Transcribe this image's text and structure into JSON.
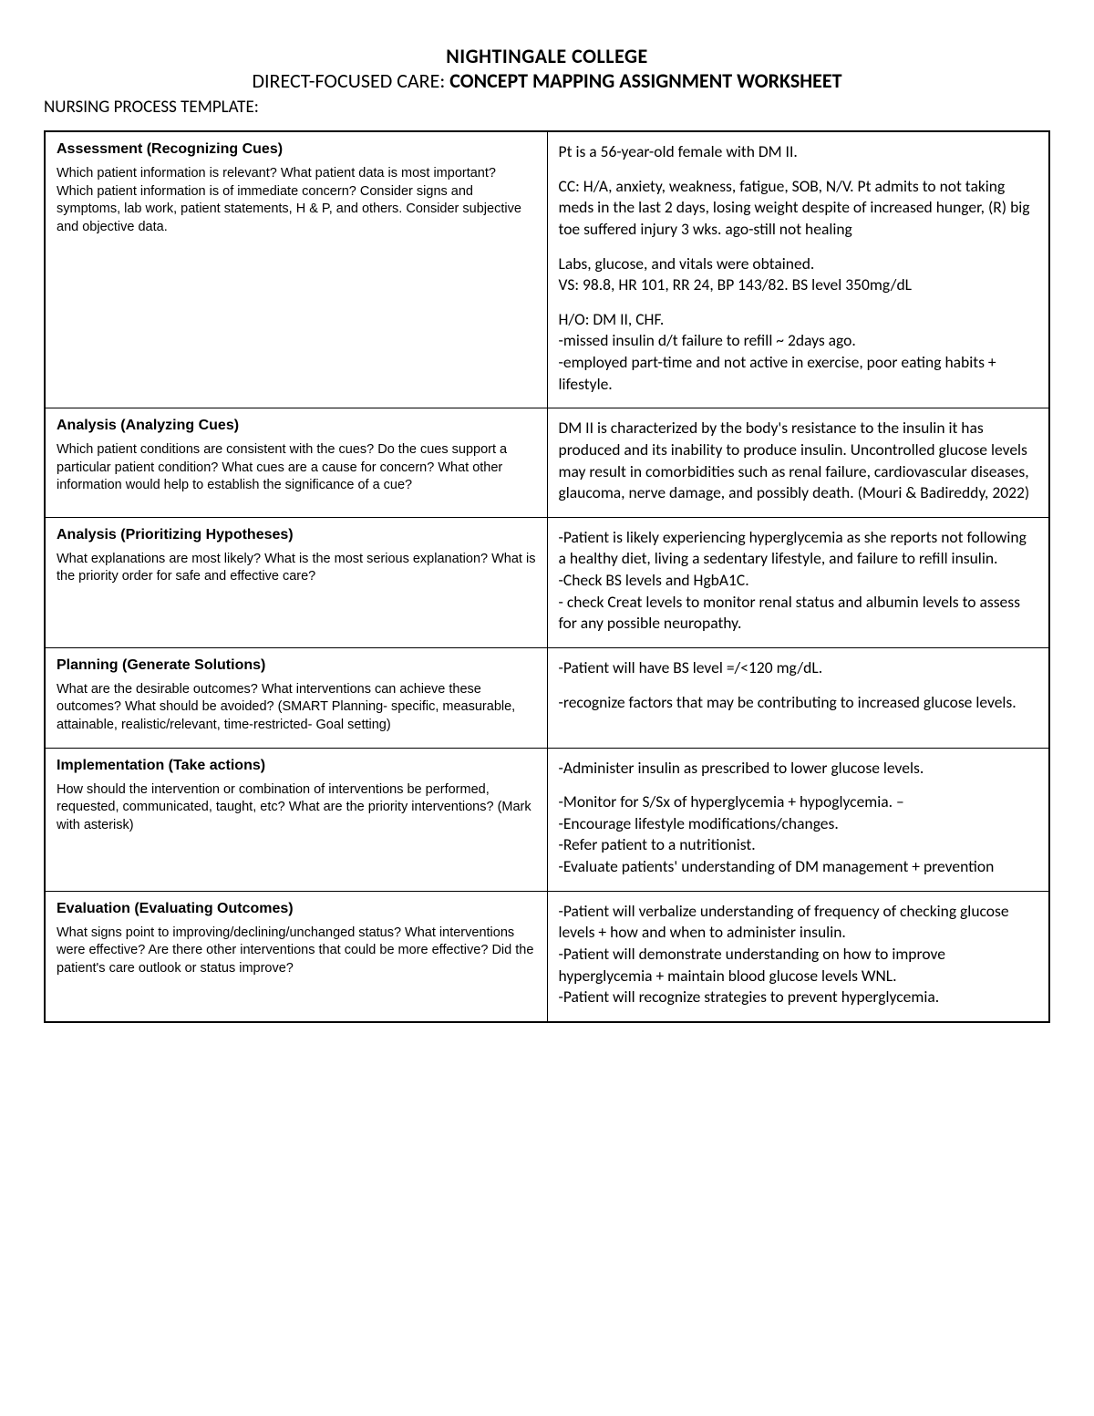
{
  "header": {
    "line1": "NIGHTINGALE COLLEGE",
    "line2_prefix": "DIRECT-FOCUSED CARE: ",
    "line2_bold": "CONCEPT MAPPING ASSIGNMENT WORKSHEET",
    "subheader": "NURSING PROCESS TEMPLATE:"
  },
  "rows": [
    {
      "title": "Assessment (Recognizing Cues)",
      "desc": "Which patient information is relevant? What patient data is most important? Which patient information is of immediate concern? Consider signs and symptoms, lab work, patient statements, H & P, and others. Consider subjective and objective data.",
      "right_paras": [
        "Pt is a 56-year-old female with DM II.",
        "CC: H/A, anxiety, weakness, fatigue, SOB, N/V. Pt admits to not taking meds in the last 2 days, losing weight despite of increased hunger, (R) big toe suffered injury 3 wks. ago-still not healing",
        "Labs, glucose, and vitals were obtained.\nVS: 98.8, HR 101, RR 24, BP 143/82. BS level 350mg/dL",
        "H/O:  DM II, CHF.\n-missed insulin d/t failure to refill ~ 2days ago.\n-employed part-time and not active in exercise, poor eating habits + lifestyle."
      ]
    },
    {
      "title": "Analysis (Analyzing Cues)",
      "desc": "Which patient conditions are consistent with the cues? Do the cues support a particular patient condition? What cues are a cause for concern? What other information would help to establish the significance of a cue?",
      "right_paras": [
        "DM II is characterized by the body's resistance to the insulin it has produced and its inability to produce insulin. Uncontrolled glucose levels may result in comorbidities such as renal failure, cardiovascular diseases, glaucoma, nerve damage, and possibly death. (Mouri & Badireddy, 2022)"
      ]
    },
    {
      "title": "Analysis (Prioritizing Hypotheses)",
      "desc": "What explanations are most likely? What is the most serious explanation? What is the priority order for safe and effective care?",
      "right_paras": [
        "-Patient is likely experiencing hyperglycemia as she reports not following a healthy diet, living a sedentary lifestyle, and failure to refill insulin.\n-Check BS levels and HgbA1C.\n- check Creat levels to monitor renal status and albumin levels to assess for any possible neuropathy."
      ]
    },
    {
      "title": "Planning (Generate Solutions)",
      "desc": "What are the desirable outcomes? What interventions can achieve these outcomes? What should be avoided? (SMART Planning- specific, measurable, attainable, realistic/relevant, time-restricted- Goal setting)",
      "right_paras": [
        "-Patient will have BS level =/<120 mg/dL.",
        "-recognize factors that may be contributing to increased glucose levels."
      ]
    },
    {
      "title": "Implementation (Take actions)",
      "desc": "How should the intervention or combination of interventions be performed, requested, communicated, taught, etc? What are the priority interventions? (Mark with asterisk)",
      "right_paras": [
        "-Administer insulin as prescribed to lower glucose levels.",
        "-Monitor for S/Sx of hyperglycemia + hypoglycemia. –\n-Encourage lifestyle modifications/changes.\n-Refer patient to a nutritionist.\n-Evaluate patients' understanding of DM management + prevention"
      ]
    },
    {
      "title": "Evaluation (Evaluating Outcomes)",
      "desc": "What signs point to improving/declining/unchanged status? What interventions were effective? Are there other interventions that could be more effective? Did the patient's care outlook or status improve?",
      "right_paras": [
        "-Patient will verbalize understanding of frequency of checking glucose levels + how and when to administer insulin.\n-Patient will demonstrate understanding on how to improve hyperglycemia + maintain blood glucose levels WNL.\n-Patient will recognize strategies to prevent hyperglycemia."
      ]
    }
  ]
}
